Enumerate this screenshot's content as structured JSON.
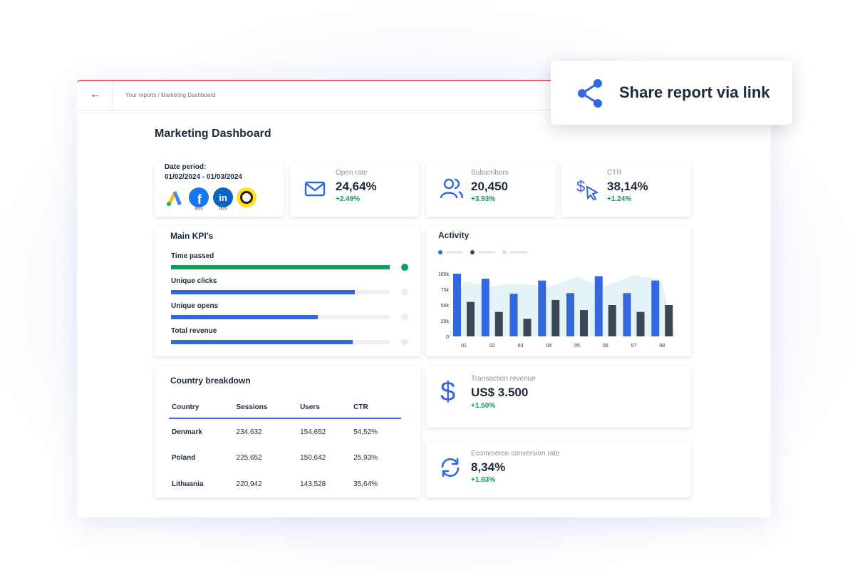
{
  "breadcrumb": "Your reports / Marketing Dashboard",
  "share_button": "Share report via link",
  "title": "Marketing Dashboard",
  "date_card": {
    "label": "Date period:",
    "range": "01/02/2024 - 01/03/2024",
    "badges": [
      "ads",
      "ads"
    ]
  },
  "kpi_cards": [
    {
      "label": "Open rate",
      "value": "24,64%",
      "change": "+2.49%"
    },
    {
      "label": "Subscribers",
      "value": "20,450",
      "change": "+3.93%"
    },
    {
      "label": "CTR",
      "value": "38,14%",
      "change": "+1.24%"
    }
  ],
  "main_kpis": {
    "title": "Main KPI’s",
    "items": [
      {
        "name": "Time passed",
        "progress": 100,
        "color": "#0f9d58"
      },
      {
        "name": "Unique clicks",
        "progress": 84,
        "color": "#3367e0"
      },
      {
        "name": "Unique opens",
        "progress": 67,
        "color": "#3367e0"
      },
      {
        "name": "Total revenue",
        "progress": 83,
        "color": "#3367e0"
      }
    ]
  },
  "chart_data": {
    "type": "bar",
    "title": "Activity",
    "categories": [
      "01",
      "02",
      "03",
      "04",
      "05",
      "06",
      "07",
      "08"
    ],
    "series": [
      {
        "color": "#3367e0",
        "values": [
          100000,
          92000,
          68000,
          89000,
          69000,
          96000,
          69000,
          89000
        ]
      },
      {
        "color": "#3b4756",
        "values": [
          55000,
          39000,
          28000,
          58000,
          42000,
          50000,
          39000,
          50000
        ]
      },
      {
        "color": "#e3f3f6",
        "kind": "area",
        "values": [
          88000,
          80000,
          85000,
          78000,
          95000,
          80000,
          98000,
          90000
        ]
      }
    ],
    "ylim": [
      0,
      100000
    ],
    "yticks": [
      {
        "value": 0,
        "label": "0"
      },
      {
        "value": 25000,
        "label": "25k"
      },
      {
        "value": 50000,
        "label": "50k"
      },
      {
        "value": 75000,
        "label": "75k"
      },
      {
        "value": 100000,
        "label": "100k"
      }
    ]
  },
  "country_table": {
    "title": "Country breakdown",
    "columns": [
      "Country",
      "Sessions",
      "Users",
      "CTR"
    ],
    "rows": [
      [
        "Denmark",
        "234,632",
        "154,652",
        "54,52%"
      ],
      [
        "Poland",
        "225,652",
        "150,642",
        "25,93%"
      ],
      [
        "Lithuania",
        "220,942",
        "143,528",
        "35,64%"
      ]
    ]
  },
  "transaction_card": {
    "label": "Transaction revenue",
    "value": "US$ 3.500",
    "change": "+1.50%"
  },
  "conversion_card": {
    "label": "Ecommerce conversion rate",
    "value": "8,34%",
    "change": "+1.93%"
  }
}
